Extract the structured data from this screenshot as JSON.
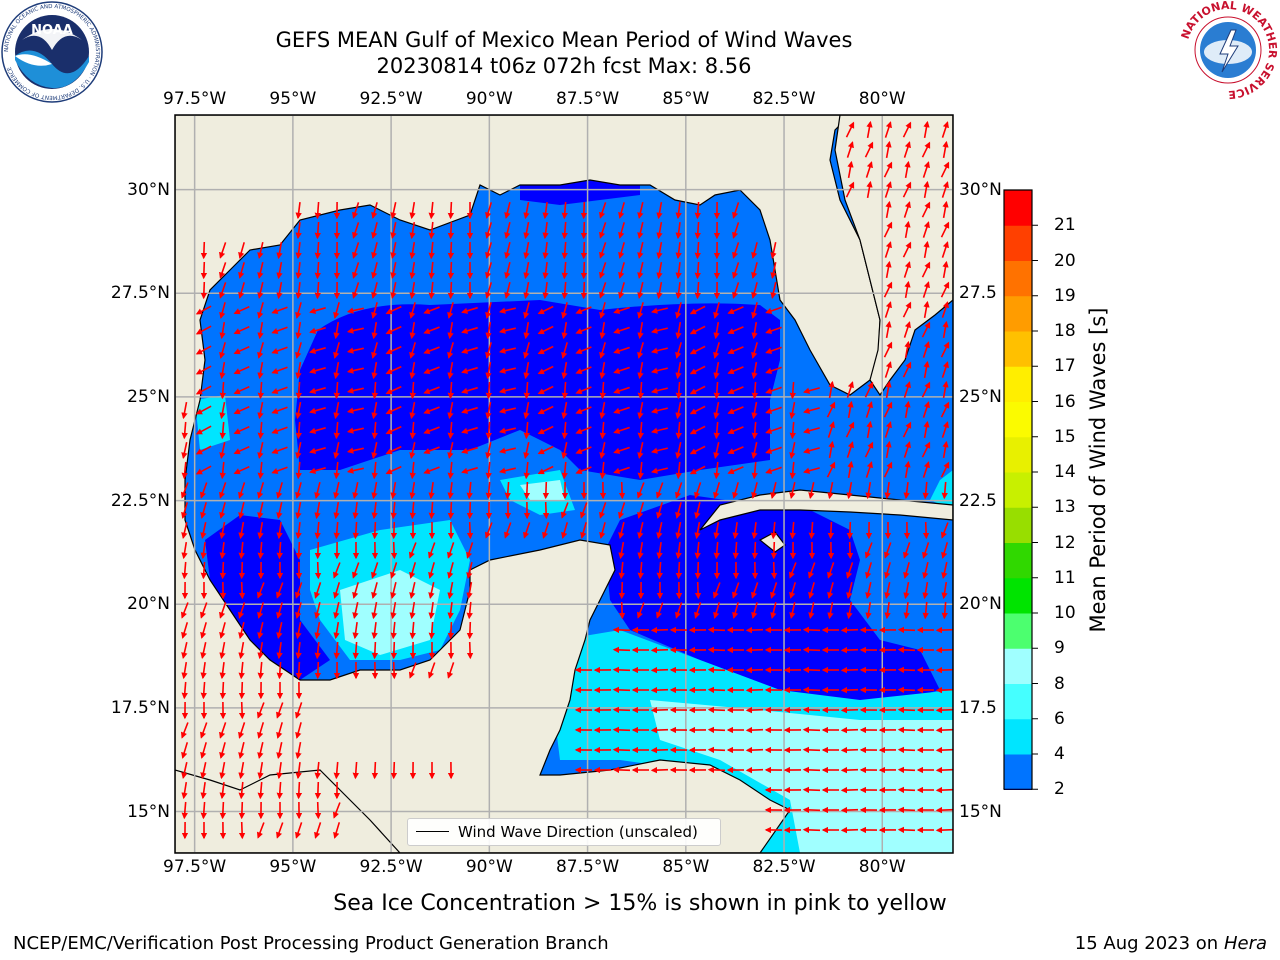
{
  "title": {
    "line1": "GEFS MEAN Gulf of Mexico Mean Period of Wind Waves",
    "line2": "20230814 t06z 072h fcst   Max: 8.56"
  },
  "logos": {
    "left": {
      "name": "noaa-logo",
      "text": "NOAA",
      "ring_text": "NATIONAL OCEANIC AND ATMOSPHERIC ADMINISTRATION · U.S. DEPARTMENT OF COMMERCE"
    },
    "right": {
      "name": "nws-logo",
      "ring_text": "NATIONAL WEATHER SERVICE"
    }
  },
  "map": {
    "lon_labels": [
      "97.5°W",
      "95°W",
      "92.5°W",
      "90°W",
      "87.5°W",
      "85°W",
      "82.5°W",
      "80°W"
    ],
    "lat_labels_left": [
      "30°N",
      "27.5°N",
      "25°N",
      "22.5°N",
      "20°N",
      "17.5°N",
      "15°N"
    ],
    "lat_labels_right": [
      "30°N",
      "27.5",
      "25°N",
      "22.5",
      "20°N",
      "17.5",
      "15°N"
    ],
    "lon_range": [
      -98,
      -78.2
    ],
    "lat_range": [
      14.0,
      31.8
    ],
    "colors": {
      "land": "#efedde",
      "coast": "#000000",
      "grid": "#b0b0b0",
      "arrow": "#ff0000"
    },
    "legend": {
      "label": "Wind Wave Direction (unscaled)"
    }
  },
  "colorbar": {
    "title": "Mean Period of Wind Waves [s]",
    "ticks": [
      "2",
      "4",
      "6",
      "8",
      "9",
      "10",
      "11",
      "12",
      "13",
      "14",
      "15",
      "16",
      "17",
      "18",
      "19",
      "20",
      "21"
    ],
    "colors": [
      "#0074ff",
      "#00e5ff",
      "#45ffff",
      "#a0ffff",
      "#4cff6f",
      "#00e400",
      "#30d800",
      "#98de00",
      "#c8f000",
      "#e8f000",
      "#fbfb00",
      "#ffee00",
      "#ffc000",
      "#ff9c00",
      "#ff7200",
      "#ff4000",
      "#ff0000"
    ],
    "extend_color": "#0000ff"
  },
  "subtitle": "Sea Ice Concentration > 15% is shown in pink to yellow",
  "credit_left": "NCEP/EMC/Verification Post Processing Product Generation Branch",
  "credit_right": {
    "date": "15 Aug 2023 on",
    "machine": "Hera"
  }
}
